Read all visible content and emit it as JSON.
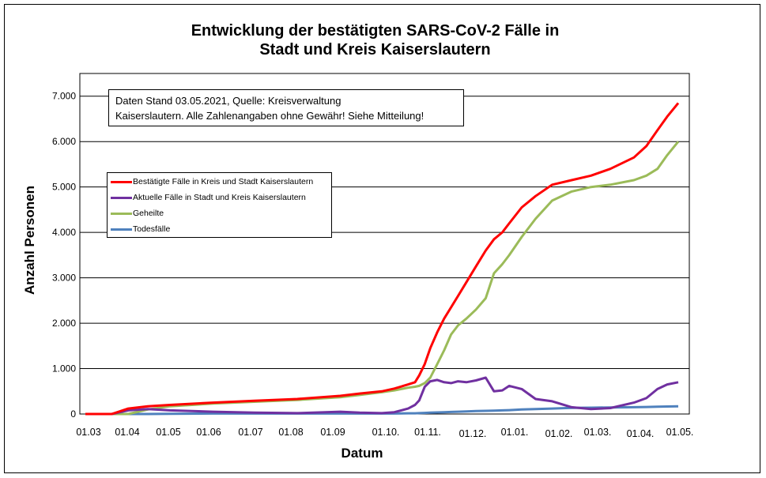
{
  "chart_data": {
    "type": "line",
    "title": [
      "Entwicklung der bestätigten SARS-CoV-2 Fälle in",
      "Stadt und Kreis Kaiserslautern"
    ],
    "xlabel": "Datum",
    "ylabel": "Anzahl Personen",
    "ylim": [
      0,
      7500
    ],
    "yticks": [
      "0",
      "1.000",
      "2.000",
      "3.000",
      "4.000",
      "5.000",
      "6.000",
      "7.000"
    ],
    "ytick_values": [
      0,
      1000,
      2000,
      3000,
      4000,
      5000,
      6000,
      7000
    ],
    "xticks": [
      "01.03",
      "01.04",
      "01.05",
      "01.06",
      "01.07",
      "01.08",
      "01.09",
      "01.10.",
      "01.11.",
      "01.12.",
      "01.01.",
      "01.02.",
      "01.03.",
      "01.04.",
      "01.05."
    ],
    "grid": true,
    "legend_position": "upper-left",
    "annotation": [
      "Daten Stand 03.05.2021, Quelle: Kreisverwaltung",
      "Kaiserslautern. Alle Zahlenangaben ohne Gewähr! Siehe Mitteilung!"
    ],
    "x": [
      "2020-03-01",
      "2020-03-20",
      "2020-04-01",
      "2020-04-15",
      "2020-05-01",
      "2020-06-01",
      "2020-07-01",
      "2020-08-01",
      "2020-09-01",
      "2020-09-15",
      "2020-10-01",
      "2020-10-10",
      "2020-10-20",
      "2020-10-25",
      "2020-10-28",
      "2020-11-01",
      "2020-11-05",
      "2020-11-10",
      "2020-11-15",
      "2020-11-20",
      "2020-11-25",
      "2020-12-01",
      "2020-12-08",
      "2020-12-15",
      "2020-12-21",
      "2020-12-27",
      "2021-01-01",
      "2021-01-10",
      "2021-01-20",
      "2021-02-01",
      "2021-02-15",
      "2021-03-01",
      "2021-03-15",
      "2021-04-01",
      "2021-04-10",
      "2021-04-18",
      "2021-04-25",
      "2021-05-03"
    ],
    "series": [
      {
        "name": "Bestätigte Fälle in Kreis und Stadt Kaiserslautern",
        "color": "#ff0000",
        "values": [
          0,
          0,
          120,
          170,
          200,
          250,
          290,
          330,
          400,
          450,
          500,
          560,
          650,
          700,
          850,
          1100,
          1450,
          1800,
          2100,
          2350,
          2600,
          2900,
          3250,
          3600,
          3850,
          4000,
          4200,
          4550,
          4800,
          5050,
          5150,
          5250,
          5400,
          5650,
          5900,
          6250,
          6550,
          6850
        ]
      },
      {
        "name": "Aktuelle Fälle in Stadt und Kreis Kaiserslautern",
        "color": "#7030a0",
        "values": [
          0,
          0,
          80,
          110,
          80,
          50,
          30,
          20,
          50,
          30,
          20,
          40,
          120,
          200,
          300,
          600,
          720,
          750,
          700,
          680,
          720,
          700,
          740,
          800,
          500,
          520,
          620,
          550,
          330,
          280,
          150,
          110,
          130,
          250,
          350,
          550,
          650,
          700
        ]
      },
      {
        "name": "Geheilte",
        "color": "#9bbb59",
        "values": [
          0,
          0,
          0,
          100,
          170,
          230,
          270,
          310,
          370,
          420,
          480,
          520,
          580,
          600,
          620,
          680,
          800,
          1100,
          1400,
          1750,
          1950,
          2100,
          2300,
          2550,
          3100,
          3300,
          3500,
          3900,
          4300,
          4700,
          4900,
          5000,
          5050,
          5150,
          5250,
          5400,
          5700,
          6000
        ]
      },
      {
        "name": "Todesfälle",
        "color": "#4f81bd",
        "values": [
          0,
          0,
          0,
          0,
          5,
          10,
          10,
          10,
          10,
          10,
          10,
          10,
          15,
          15,
          20,
          25,
          30,
          35,
          40,
          45,
          50,
          55,
          65,
          70,
          75,
          80,
          85,
          100,
          110,
          120,
          135,
          140,
          145,
          150,
          155,
          160,
          165,
          170
        ]
      }
    ]
  }
}
